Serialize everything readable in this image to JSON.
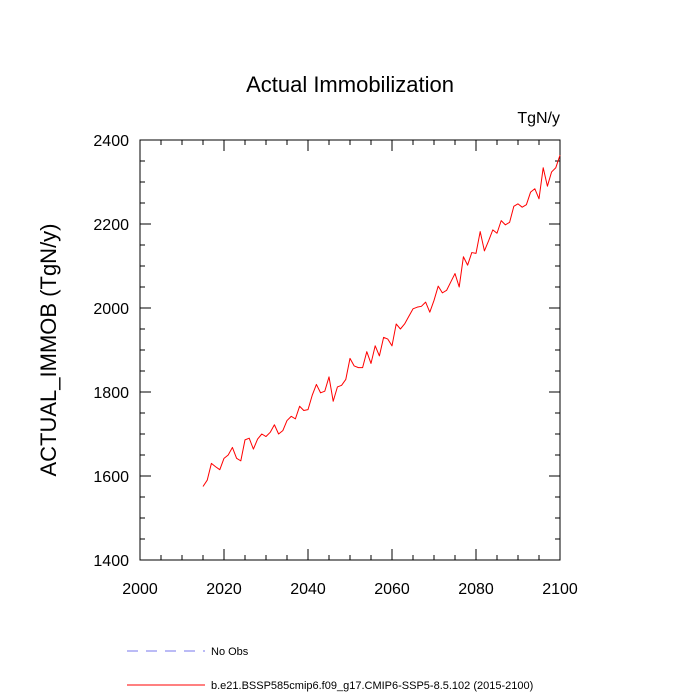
{
  "chart_data": {
    "type": "line",
    "title": "Actual Immobilization",
    "units": "TgN/y",
    "ylabel": "ACTUAL_IMMOB  (TgN/y)",
    "xlim": [
      2000,
      2100
    ],
    "ylim": [
      1400,
      2400
    ],
    "x_major_ticks": [
      2000,
      2020,
      2040,
      2060,
      2080,
      2100
    ],
    "y_major_ticks": [
      1400,
      1600,
      1800,
      2000,
      2200,
      2400
    ],
    "x_minor_step": 5,
    "y_minor_step": 50,
    "legend_position": "bottom",
    "legend": [
      {
        "label": "No Obs",
        "color": "#7777ee",
        "dash": true
      },
      {
        "label": "b.e21.BSSP585cmip6.f09_g17.CMIP6-SSP5-8.5.102 (2015-2100)",
        "color": "#ff0000",
        "dash": false
      }
    ],
    "series": [
      {
        "name": "b.e21.BSSP585cmip6.f09_g17.CMIP6-SSP5-8.5.102 (2015-2100)",
        "color": "#ff0000",
        "x": [
          2015,
          2016,
          2017,
          2018,
          2019,
          2020,
          2021,
          2022,
          2023,
          2024,
          2025,
          2026,
          2027,
          2028,
          2029,
          2030,
          2031,
          2032,
          2033,
          2034,
          2035,
          2036,
          2037,
          2038,
          2039,
          2040,
          2041,
          2042,
          2043,
          2044,
          2045,
          2046,
          2047,
          2048,
          2049,
          2050,
          2051,
          2052,
          2053,
          2054,
          2055,
          2056,
          2057,
          2058,
          2059,
          2060,
          2061,
          2062,
          2063,
          2064,
          2065,
          2066,
          2067,
          2068,
          2069,
          2070,
          2071,
          2072,
          2073,
          2074,
          2075,
          2076,
          2077,
          2078,
          2079,
          2080,
          2081,
          2082,
          2083,
          2084,
          2085,
          2086,
          2087,
          2088,
          2089,
          2090,
          2091,
          2092,
          2093,
          2094,
          2095,
          2096,
          2097,
          2098,
          2099,
          2100
        ],
        "y": [
          1575,
          1590,
          1630,
          1622,
          1615,
          1642,
          1650,
          1668,
          1642,
          1636,
          1686,
          1690,
          1664,
          1688,
          1700,
          1694,
          1704,
          1722,
          1700,
          1708,
          1732,
          1742,
          1736,
          1766,
          1756,
          1758,
          1792,
          1818,
          1798,
          1802,
          1836,
          1778,
          1812,
          1816,
          1830,
          1880,
          1862,
          1858,
          1858,
          1896,
          1868,
          1910,
          1886,
          1930,
          1926,
          1910,
          1962,
          1950,
          1962,
          1980,
          1998,
          2002,
          2004,
          2014,
          1990,
          2018,
          2052,
          2036,
          2042,
          2062,
          2082,
          2050,
          2122,
          2102,
          2132,
          2130,
          2182,
          2136,
          2160,
          2186,
          2178,
          2208,
          2198,
          2204,
          2242,
          2248,
          2240,
          2246,
          2276,
          2284,
          2260,
          2334,
          2290,
          2324,
          2334,
          2364
        ]
      }
    ]
  }
}
